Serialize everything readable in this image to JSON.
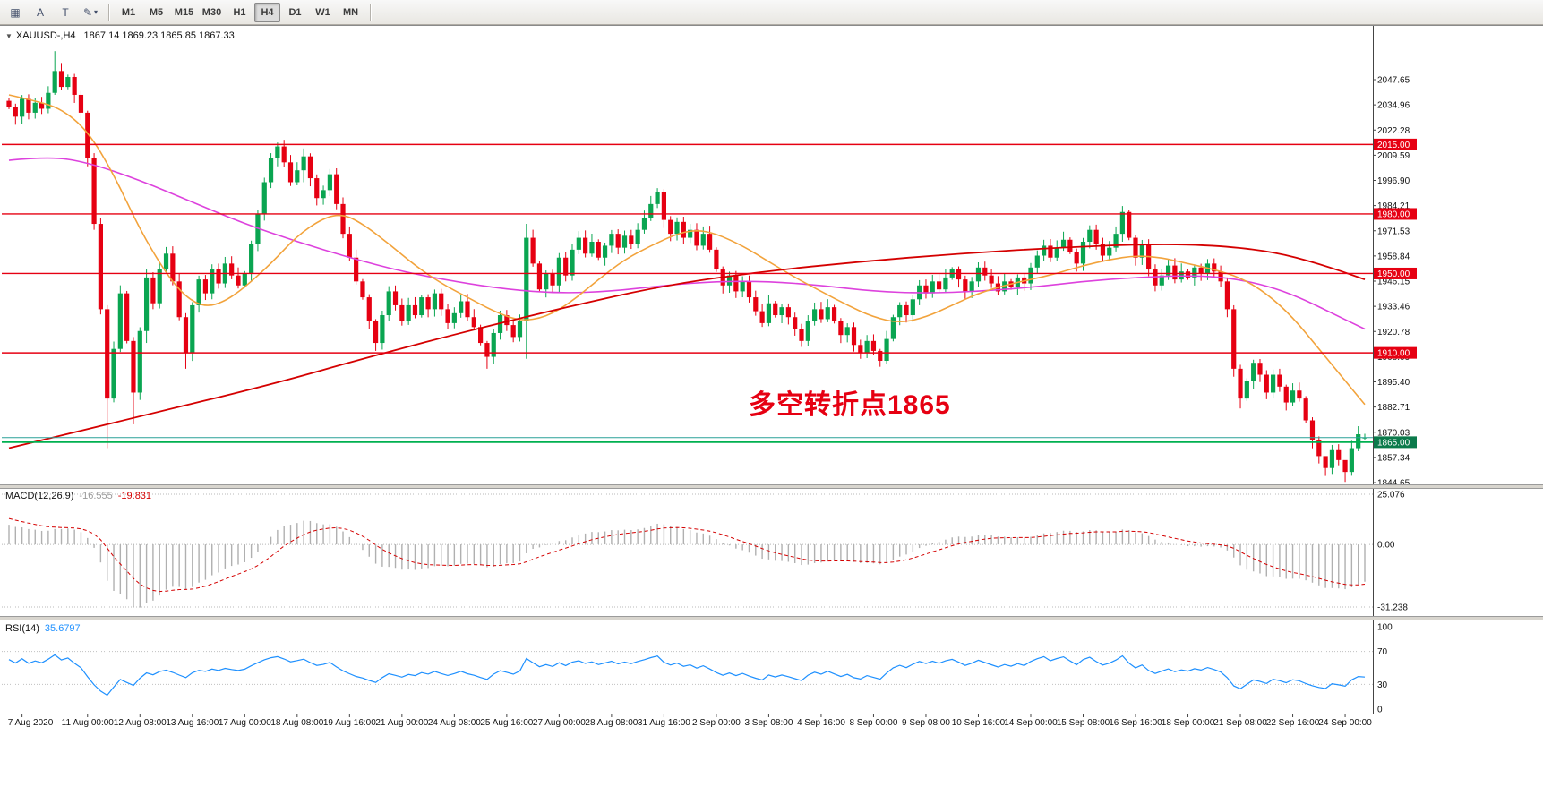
{
  "toolbar": {
    "icon_buttons": [
      {
        "name": "tile-windows",
        "glyph": "▦"
      },
      {
        "name": "font-a",
        "glyph": "A"
      },
      {
        "name": "text-tool",
        "glyph": "T"
      },
      {
        "name": "draw-tool",
        "glyph": "✎",
        "caret": "▾"
      }
    ],
    "timeframes": [
      {
        "label": "M1"
      },
      {
        "label": "M5"
      },
      {
        "label": "M15"
      },
      {
        "label": "M30"
      },
      {
        "label": "H1"
      },
      {
        "label": "H4",
        "active": true
      },
      {
        "label": "D1"
      },
      {
        "label": "W1"
      },
      {
        "label": "MN"
      }
    ]
  },
  "chart_header": {
    "dropdown_icon": "▼",
    "symbol_period": "XAUUSD-,H4",
    "ohlc": "1867.14 1869.23 1865.85 1867.33"
  },
  "annotation": {
    "text": "多空转折点1865",
    "color": "#e60012"
  },
  "price_axis": {
    "labels": [
      "2047.65",
      "2034.96",
      "2022.28",
      "2009.59",
      "1996.90",
      "1984.21",
      "1971.53",
      "1958.84",
      "1946.15",
      "1933.46",
      "1920.78",
      "1908.09",
      "1895.40",
      "1882.71",
      "1870.03",
      "1857.34",
      "1844.65"
    ]
  },
  "levels": {
    "resistance_lines": [
      {
        "price": 2015,
        "label": "2015.00"
      },
      {
        "price": 1980,
        "label": "1980.00"
      },
      {
        "price": 1950,
        "label": "1950.00"
      },
      {
        "price": 1910,
        "label": "1910.00"
      }
    ],
    "support_line": {
      "price": 1865,
      "label": "1865.00"
    },
    "current_price_line": {
      "price": 1867.33
    }
  },
  "colors": {
    "up": "#0aa551",
    "down": "#e60012",
    "resistance": "#e60012",
    "support": "#00b050",
    "support_badge": "#0b7a4b",
    "price_line": "#2aa198",
    "ma_long": "#d40000",
    "ma_mid": "#f2a33c",
    "ma_slow": "#dd42dd",
    "macd_hist": "#b0b0b0",
    "macd_signal": "#d40000",
    "rsi": "#1e90ff",
    "annotation": "#e60012"
  },
  "x_axis": {
    "labels": [
      {
        "bar": 2,
        "text": "7 Aug 2020"
      },
      {
        "bar": 12,
        "text": "11 Aug 00:00"
      },
      {
        "bar": 20,
        "text": "12 Aug 08:00"
      },
      {
        "bar": 28,
        "text": "13 Aug 16:00"
      },
      {
        "bar": 36,
        "text": "17 Aug 00:00"
      },
      {
        "bar": 44,
        "text": "18 Aug 08:00"
      },
      {
        "bar": 52,
        "text": "19 Aug 16:00"
      },
      {
        "bar": 60,
        "text": "21 Aug 00:00"
      },
      {
        "bar": 68,
        "text": "24 Aug 08:00"
      },
      {
        "bar": 76,
        "text": "25 Aug 16:00"
      },
      {
        "bar": 84,
        "text": "27 Aug 00:00"
      },
      {
        "bar": 92,
        "text": "28 Aug 08:00"
      },
      {
        "bar": 100,
        "text": "31 Aug 16:00"
      },
      {
        "bar": 108,
        "text": "2 Sep 00:00"
      },
      {
        "bar": 116,
        "text": "3 Sep 08:00"
      },
      {
        "bar": 124,
        "text": "4 Sep 16:00"
      },
      {
        "bar": 132,
        "text": "8 Sep 00:00"
      },
      {
        "bar": 140,
        "text": "9 Sep 08:00"
      },
      {
        "bar": 148,
        "text": "10 Sep 16:00"
      },
      {
        "bar": 156,
        "text": "14 Sep 00:00"
      },
      {
        "bar": 164,
        "text": "15 Sep 08:00"
      },
      {
        "bar": 172,
        "text": "16 Sep 16:00"
      },
      {
        "bar": 180,
        "text": "18 Sep 00:00"
      },
      {
        "bar": 188,
        "text": "21 Sep 08:00"
      },
      {
        "bar": 196,
        "text": "22 Sep 16:00"
      },
      {
        "bar": 204,
        "text": "24 Sep 00:00"
      }
    ]
  },
  "macd_panel": {
    "title": "MACD(12,26,9)",
    "value_main": "-16.555",
    "value_signal": "-19.831",
    "axis": [
      {
        "v": 25.076,
        "label": "25.076"
      },
      {
        "v": 0,
        "label": "0.00"
      },
      {
        "v": -31.238,
        "label": "-31.238"
      }
    ]
  },
  "rsi_panel": {
    "title": "RSI(14)",
    "value": "35.6797",
    "axis": [
      {
        "v": 100,
        "label": "100"
      },
      {
        "v": 70,
        "label": "70"
      },
      {
        "v": 30,
        "label": "30"
      },
      {
        "v": 0,
        "label": "0"
      }
    ],
    "levels": [
      70,
      30
    ]
  },
  "chart_data": {
    "type": "candlestick",
    "symbol": "XAUUSD-",
    "period": "H4",
    "y_top_label": 2047.65,
    "y_bottom_label": 1844.65,
    "last_open": 1867.14,
    "closes": [
      2034,
      2029,
      2038,
      2031,
      2036,
      2033,
      2041,
      2052,
      2044,
      2049,
      2040,
      2031,
      2008,
      1975,
      1932,
      1887,
      1912,
      1940,
      1916,
      1890,
      1921,
      1948,
      1935,
      1952,
      1960,
      1946,
      1928,
      1910,
      1934,
      1947,
      1940,
      1952,
      1945,
      1955,
      1949,
      1944,
      1950,
      1965,
      1980,
      1996,
      2008,
      2014,
      2006,
      1996,
      2002,
      2009,
      1998,
      1988,
      1992,
      2000,
      1985,
      1970,
      1958,
      1946,
      1938,
      1926,
      1915,
      1929,
      1941,
      1934,
      1926,
      1934,
      1929,
      1938,
      1932,
      1940,
      1932,
      1925,
      1930,
      1936,
      1928,
      1923,
      1915,
      1908,
      1920,
      1929,
      1924,
      1918,
      1926,
      1968,
      1955,
      1942,
      1950,
      1944,
      1958,
      1949,
      1962,
      1968,
      1960,
      1966,
      1958,
      1964,
      1970,
      1963,
      1969,
      1965,
      1972,
      1978,
      1985,
      1991,
      1977,
      1970,
      1976,
      1968,
      1972,
      1964,
      1970,
      1962,
      1952,
      1944,
      1949,
      1941,
      1946,
      1938,
      1931,
      1925,
      1935,
      1929,
      1933,
      1928,
      1922,
      1916,
      1926,
      1932,
      1927,
      1933,
      1926,
      1919,
      1923,
      1914,
      1910,
      1916,
      1911,
      1906,
      1917,
      1928,
      1934,
      1929,
      1937,
      1944,
      1940,
      1946,
      1942,
      1948,
      1952,
      1947,
      1941,
      1946,
      1953,
      1949,
      1945,
      1941,
      1946,
      1943,
      1948,
      1945,
      1953,
      1959,
      1964,
      1958,
      1963,
      1967,
      1961,
      1955,
      1966,
      1972,
      1965,
      1959,
      1963,
      1970,
      1981,
      1968,
      1958,
      1965,
      1952,
      1944,
      1949,
      1954,
      1947,
      1951,
      1948,
      1953,
      1950,
      1955,
      1951,
      1946,
      1932,
      1902,
      1887,
      1896,
      1905,
      1899,
      1890,
      1899,
      1893,
      1885,
      1891,
      1887,
      1876,
      1866,
      1858,
      1852,
      1861,
      1856,
      1850,
      1862,
      1869,
      1867.33
    ],
    "warmup_closes": [
      1945,
      1951,
      1947,
      1956,
      1962,
      1958,
      1966,
      1973,
      1969,
      1977,
      1984,
      1980,
      1988,
      1995,
      1991,
      1999,
      2006,
      2002,
      2010,
      2017,
      2013,
      2021,
      2028,
      2024,
      2032,
      2039,
      2035,
      2043,
      2050,
      2046,
      2042,
      2036,
      2040,
      2034,
      2030,
      2036,
      2032,
      2028,
      2033,
      2037
    ],
    "wick_overrides": {
      "7": [
        2062,
        2040
      ],
      "12": [
        2032,
        2004
      ],
      "15": [
        1934,
        1862
      ],
      "19": [
        1918,
        1874
      ],
      "21": [
        1952,
        1915
      ],
      "27": [
        1930,
        1902
      ],
      "41": [
        2016,
        2004
      ],
      "45": [
        2013,
        1996
      ],
      "56": [
        1927,
        1911
      ],
      "73": [
        1916,
        1902
      ],
      "79": [
        1975,
        1907
      ],
      "99": [
        1993,
        1983
      ],
      "133": [
        1912,
        1903
      ],
      "170": [
        1984,
        1966
      ],
      "186": [
        1948,
        1928
      ],
      "187": [
        1934,
        1898
      ],
      "188": [
        1904,
        1882
      ],
      "195": [
        1894,
        1881
      ],
      "201": [
        1856,
        1848
      ],
      "204": [
        1853,
        1845
      ],
      "207": [
        1869.23,
        1865.85
      ]
    },
    "moving_averages": [
      {
        "name": "ma-slow-magenta",
        "color_key": "ma_slow",
        "width": 1.6,
        "points": [
          [
            0,
            2007
          ],
          [
            6,
            2009
          ],
          [
            12,
            2006
          ],
          [
            20,
            1997
          ],
          [
            28,
            1986
          ],
          [
            36,
            1975
          ],
          [
            44,
            1966
          ],
          [
            52,
            1958
          ],
          [
            60,
            1951
          ],
          [
            68,
            1946
          ],
          [
            76,
            1942
          ],
          [
            84,
            1940
          ],
          [
            92,
            1941
          ],
          [
            100,
            1944
          ],
          [
            108,
            1946
          ],
          [
            116,
            1946
          ],
          [
            124,
            1944
          ],
          [
            132,
            1941
          ],
          [
            140,
            1940
          ],
          [
            148,
            1941
          ],
          [
            156,
            1943
          ],
          [
            164,
            1946
          ],
          [
            172,
            1948
          ],
          [
            180,
            1949
          ],
          [
            186,
            1948
          ],
          [
            192,
            1944
          ],
          [
            197,
            1938
          ],
          [
            202,
            1930
          ],
          [
            207,
            1922
          ]
        ]
      },
      {
        "name": "ma-mid-orange",
        "color_key": "ma_mid",
        "width": 1.6,
        "points": [
          [
            0,
            2040
          ],
          [
            4,
            2037
          ],
          [
            8,
            2033
          ],
          [
            12,
            2022
          ],
          [
            16,
            2000
          ],
          [
            20,
            1972
          ],
          [
            24,
            1950
          ],
          [
            27,
            1938
          ],
          [
            30,
            1933
          ],
          [
            33,
            1936
          ],
          [
            36,
            1943
          ],
          [
            40,
            1955
          ],
          [
            44,
            1969
          ],
          [
            48,
            1978
          ],
          [
            51,
            1980
          ],
          [
            54,
            1975
          ],
          [
            58,
            1965
          ],
          [
            62,
            1954
          ],
          [
            66,
            1945
          ],
          [
            70,
            1938
          ],
          [
            74,
            1931
          ],
          [
            78,
            1926
          ],
          [
            82,
            1928
          ],
          [
            86,
            1936
          ],
          [
            90,
            1947
          ],
          [
            94,
            1957
          ],
          [
            98,
            1964
          ],
          [
            102,
            1970
          ],
          [
            105,
            1972
          ],
          [
            108,
            1970
          ],
          [
            112,
            1964
          ],
          [
            116,
            1956
          ],
          [
            120,
            1948
          ],
          [
            124,
            1941
          ],
          [
            128,
            1934
          ],
          [
            132,
            1928
          ],
          [
            136,
            1925
          ],
          [
            140,
            1928
          ],
          [
            144,
            1934
          ],
          [
            148,
            1940
          ],
          [
            152,
            1944
          ],
          [
            156,
            1947
          ],
          [
            160,
            1950
          ],
          [
            164,
            1954
          ],
          [
            168,
            1957
          ],
          [
            172,
            1959
          ],
          [
            176,
            1958
          ],
          [
            180,
            1955
          ],
          [
            184,
            1952
          ],
          [
            188,
            1948
          ],
          [
            192,
            1940
          ],
          [
            196,
            1928
          ],
          [
            200,
            1912
          ],
          [
            204,
            1896
          ],
          [
            207,
            1884
          ]
        ]
      },
      {
        "name": "ma-long-red",
        "color_key": "ma_long",
        "width": 1.8,
        "points": [
          [
            0,
            1862
          ],
          [
            20,
            1878
          ],
          [
            40,
            1894
          ],
          [
            55,
            1908
          ],
          [
            70,
            1921
          ],
          [
            85,
            1933
          ],
          [
            100,
            1944
          ],
          [
            115,
            1951
          ],
          [
            130,
            1956
          ],
          [
            145,
            1960
          ],
          [
            160,
            1963
          ],
          [
            175,
            1965
          ],
          [
            185,
            1964
          ],
          [
            193,
            1961
          ],
          [
            200,
            1955
          ],
          [
            207,
            1947
          ]
        ]
      }
    ],
    "indicators": {
      "macd": {
        "fast": 12,
        "slow": 26,
        "signal": 9
      },
      "rsi": {
        "period": 14
      }
    }
  }
}
